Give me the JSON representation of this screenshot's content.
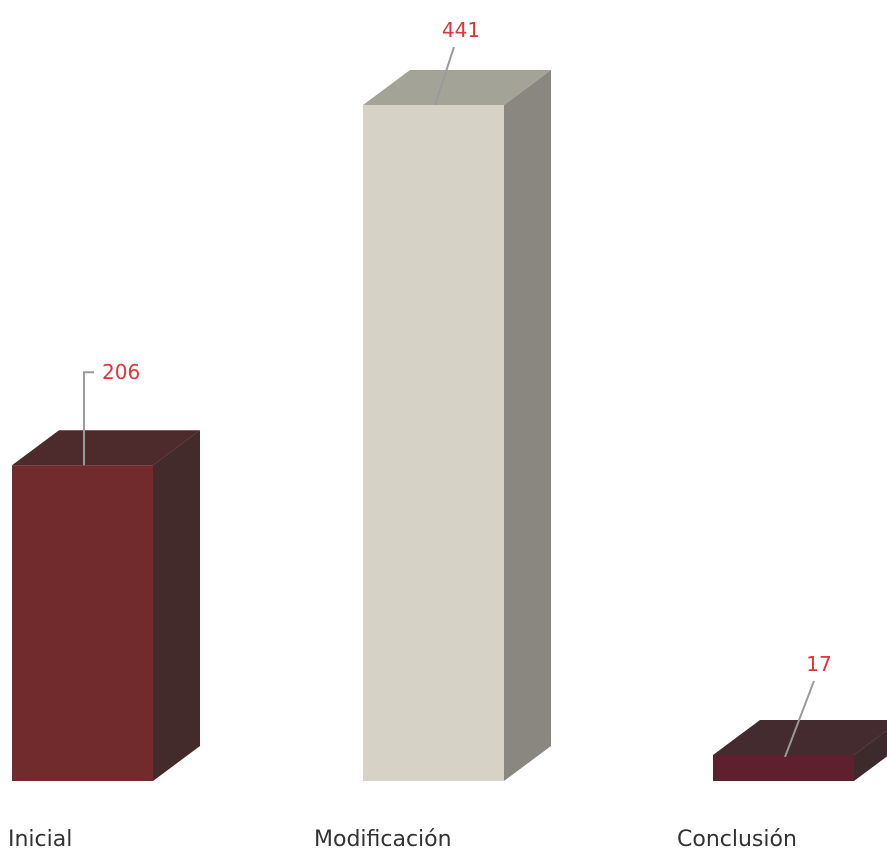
{
  "chart_data": {
    "type": "bar",
    "style": "3d-column",
    "categories": [
      "Inicial",
      "Modificación",
      "Conclusión"
    ],
    "values": [
      206,
      441,
      17
    ],
    "ylim": [
      0,
      441
    ],
    "grid": false,
    "legend": "none",
    "bar_colors": [
      {
        "front": "#722b2c",
        "top": "#4d2a2b",
        "side": "#432a2b"
      },
      {
        "front": "#d6d2c6",
        "top": "#a4a398",
        "side": "#898780"
      },
      {
        "front": "#5e1f2e",
        "top": "#432b2f",
        "side": "#3c2a2d"
      }
    ],
    "value_label_color": "#e0333a",
    "leader_color": "#9a9a9a",
    "category_label_color": "#333333"
  }
}
